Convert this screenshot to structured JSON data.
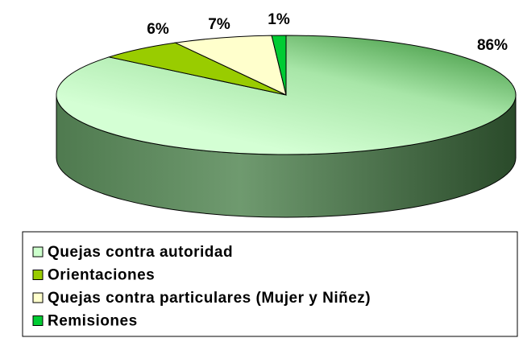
{
  "chart_data": {
    "type": "pie",
    "categories": [
      "Quejas contra autoridad",
      "Orientaciones",
      "Quejas contra particulares (Mujer y Niñez)",
      "Remisiones"
    ],
    "values": [
      86,
      6,
      7,
      1
    ],
    "value_labels": [
      "86%",
      "6%",
      "7%",
      "1%"
    ],
    "colors": [
      "#ccffcc",
      "#99cc00",
      "#ffffcc",
      "#00cc33"
    ],
    "legend": "bottom"
  }
}
